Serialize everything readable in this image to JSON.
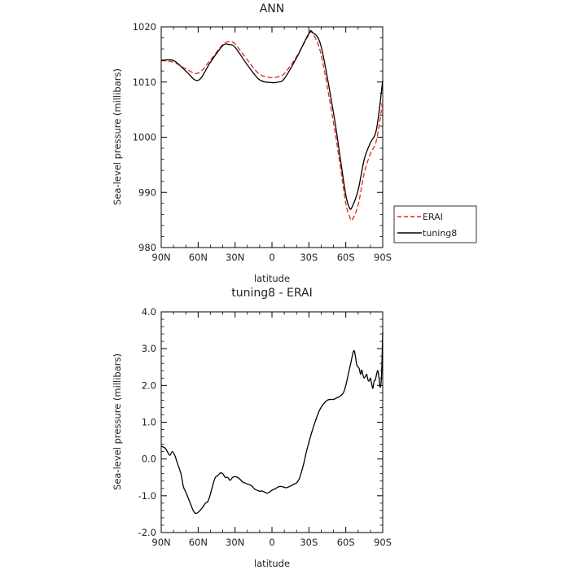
{
  "chart_data": [
    {
      "type": "line",
      "title": "ANN",
      "xlabel": "latitude",
      "ylabel": "Sea-level pressure (millibars)",
      "xlim": [
        90,
        -90
      ],
      "ylim": [
        980,
        1020
      ],
      "xticks": [
        90,
        60,
        30,
        0,
        -30,
        -60,
        -90
      ],
      "xtick_labels": [
        "90N",
        "60N",
        "30N",
        "0",
        "30S",
        "60S",
        "90S"
      ],
      "yticks": [
        980,
        990,
        1000,
        1010,
        1020
      ],
      "ytick_labels": [
        "980",
        "990",
        "1000",
        "1010",
        "1020"
      ],
      "legend_position": "right of plot, bottom",
      "series": [
        {
          "name": "ERAI",
          "color": "#e8231f",
          "dash": "dashed",
          "x": [
            90,
            80,
            70,
            60,
            50,
            40,
            35,
            30,
            20,
            10,
            0,
            -5,
            -10,
            -20,
            -30,
            -33,
            -40,
            -50,
            -55,
            -60,
            -63,
            -65,
            -70,
            -75,
            -80,
            -85,
            -90
          ],
          "y": [
            1013.9,
            1013.6,
            1012.4,
            1011.6,
            1014.0,
            1016.8,
            1017.3,
            1016.9,
            1014.0,
            1011.4,
            1010.8,
            1011.0,
            1011.5,
            1014.6,
            1018.6,
            1018.8,
            1014.9,
            1002.6,
            995.5,
            988.0,
            985.7,
            985.0,
            987.7,
            993.5,
            997.0,
            999.5,
            1006.5
          ]
        },
        {
          "name": "tuning8",
          "color": "#000000",
          "dash": "solid",
          "x": [
            90,
            80,
            70,
            60,
            50,
            40,
            35,
            30,
            20,
            10,
            0,
            -5,
            -10,
            -20,
            -30,
            -33,
            -40,
            -50,
            -55,
            -60,
            -63,
            -65,
            -70,
            -75,
            -80,
            -85,
            -90
          ],
          "y": [
            1013.9,
            1013.9,
            1012.0,
            1010.3,
            1013.6,
            1016.6,
            1016.8,
            1016.3,
            1013.1,
            1010.4,
            1009.9,
            1010.0,
            1010.6,
            1014.4,
            1018.8,
            1019.0,
            1016.4,
            1004.4,
            997.0,
            989.5,
            987.2,
            987.3,
            990.4,
            996.0,
            999.0,
            1001.5,
            1010.3
          ]
        }
      ]
    },
    {
      "type": "line",
      "title": "tuning8 - ERAI",
      "xlabel": "latitude",
      "ylabel": "Sea-level pressure (millibars)",
      "xlim": [
        90,
        -90
      ],
      "ylim": [
        -2.0,
        4.0
      ],
      "xticks": [
        90,
        60,
        30,
        0,
        -30,
        -60,
        -90
      ],
      "xtick_labels": [
        "90N",
        "60N",
        "30N",
        "0",
        "30S",
        "60S",
        "90S"
      ],
      "yticks": [
        -2,
        -1,
        0,
        1,
        2,
        3,
        4
      ],
      "ytick_labels": [
        "-2.0",
        "-1.0",
        "0.0",
        "1.0",
        "2.0",
        "3.0",
        "4.0"
      ],
      "series": [
        {
          "color": "#000000",
          "dash": "solid",
          "x": [
            90,
            87,
            85,
            83,
            81,
            79,
            77,
            74,
            72,
            70,
            67,
            64,
            62,
            60,
            58,
            56,
            54,
            52,
            50,
            48,
            46,
            44,
            42,
            40,
            38,
            36,
            34,
            32,
            30,
            28,
            26,
            24,
            22,
            20,
            18,
            16,
            14,
            12,
            10,
            8,
            6,
            4,
            2,
            0,
            -2,
            -4,
            -6,
            -8,
            -10,
            -12,
            -14,
            -16,
            -18,
            -20,
            -22,
            -24,
            -26,
            -28,
            -30,
            -33,
            -36,
            -39,
            -42,
            -45,
            -48,
            -50,
            -52,
            -55,
            -58,
            -60,
            -62,
            -64,
            -66,
            -67,
            -68,
            -69,
            -70,
            -71,
            -72,
            -73,
            -74,
            -75,
            -76,
            -77,
            -78,
            -79,
            -80,
            -81,
            -82,
            -83,
            -84,
            -85,
            -86,
            -87,
            -88,
            -89,
            -90
          ],
          "y": [
            0.35,
            0.3,
            0.2,
            0.1,
            0.2,
            0.1,
            -0.1,
            -0.4,
            -0.75,
            -0.9,
            -1.15,
            -1.4,
            -1.48,
            -1.45,
            -1.38,
            -1.3,
            -1.2,
            -1.15,
            -0.95,
            -0.7,
            -0.5,
            -0.45,
            -0.38,
            -0.4,
            -0.5,
            -0.5,
            -0.58,
            -0.5,
            -0.48,
            -0.5,
            -0.55,
            -0.62,
            -0.65,
            -0.68,
            -0.7,
            -0.75,
            -0.82,
            -0.85,
            -0.88,
            -0.87,
            -0.9,
            -0.93,
            -0.9,
            -0.85,
            -0.82,
            -0.78,
            -0.75,
            -0.75,
            -0.77,
            -0.78,
            -0.75,
            -0.72,
            -0.68,
            -0.65,
            -0.55,
            -0.35,
            -0.1,
            0.2,
            0.45,
            0.8,
            1.1,
            1.35,
            1.5,
            1.6,
            1.62,
            1.62,
            1.65,
            1.7,
            1.8,
            2.0,
            2.3,
            2.6,
            2.9,
            2.93,
            2.75,
            2.55,
            2.5,
            2.45,
            2.3,
            2.42,
            2.28,
            2.2,
            2.25,
            2.3,
            2.15,
            2.12,
            2.2,
            2.05,
            1.92,
            2.12,
            2.15,
            2.3,
            2.4,
            2.2,
            1.95,
            2.25,
            3.45
          ]
        }
      ]
    }
  ]
}
